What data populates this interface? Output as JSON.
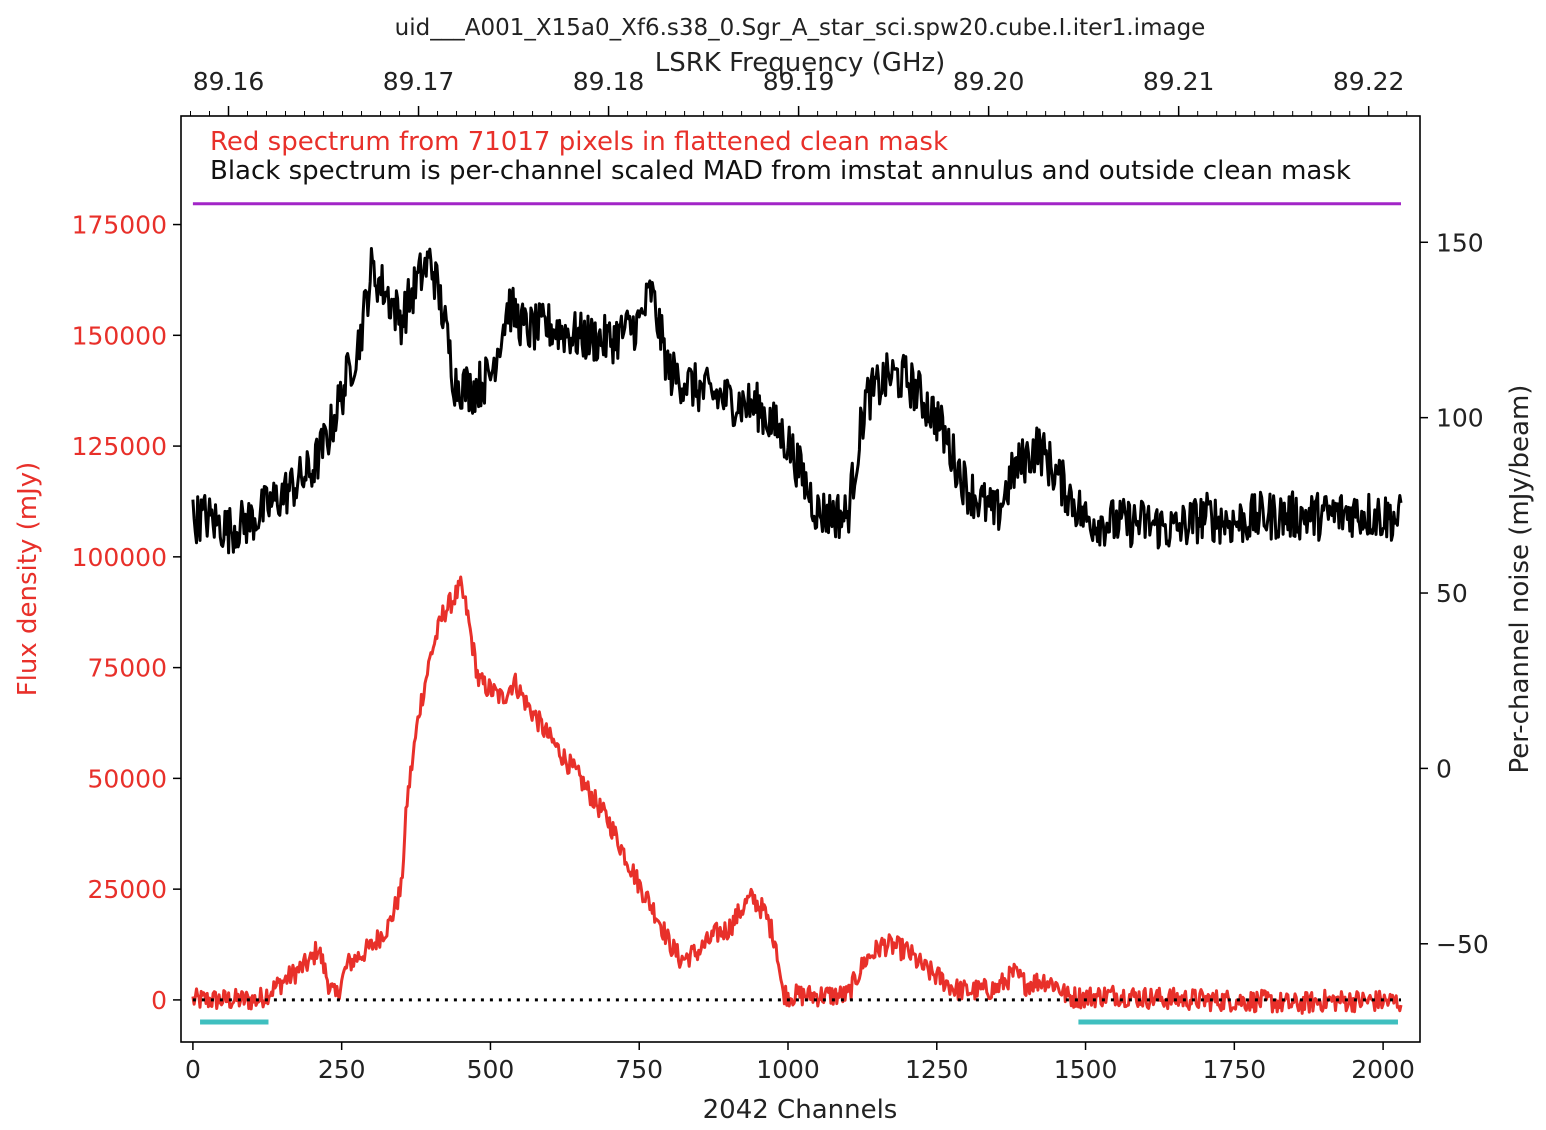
{
  "chart_data": {
    "type": "line",
    "title": "uid___A001_X15a0_Xf6.s38_0.Sgr_A_star_sci.spw20.cube.I.iter1.image",
    "xlabel": "2042 Channels",
    "top_xlabel": "LSRK Frequency (GHz)",
    "ylabel_left": "Flux density (mJy)",
    "ylabel_right": "Per-channel noise (mJy/beam)",
    "annotation_red": "Red spectrum from 71017 pixels in flattened clean mask",
    "annotation_black": "Black spectrum is per-channel scaled MAD from imstat annulus and outside clean mask",
    "xlim": [
      -20,
      2062
    ],
    "ylim_left": [
      -9500,
      199500
    ],
    "ylim_right": [
      -78,
      186
    ],
    "top_xlim": [
      89.1575,
      89.2227
    ],
    "x_ticks": [
      {
        "v": 0,
        "label": "0"
      },
      {
        "v": 250,
        "label": "250"
      },
      {
        "v": 500,
        "label": "500"
      },
      {
        "v": 750,
        "label": "750"
      },
      {
        "v": 1000,
        "label": "1000"
      },
      {
        "v": 1250,
        "label": "1250"
      },
      {
        "v": 1500,
        "label": "1500"
      },
      {
        "v": 1750,
        "label": "1750"
      },
      {
        "v": 2000,
        "label": "2000"
      }
    ],
    "y_left_ticks": [
      {
        "v": 0,
        "label": "0"
      },
      {
        "v": 25000,
        "label": "25000"
      },
      {
        "v": 50000,
        "label": "50000"
      },
      {
        "v": 75000,
        "label": "75000"
      },
      {
        "v": 100000,
        "label": "100000"
      },
      {
        "v": 125000,
        "label": "125000"
      },
      {
        "v": 150000,
        "label": "150000"
      },
      {
        "v": 175000,
        "label": "175000"
      }
    ],
    "y_right_ticks": [
      {
        "v": -50,
        "label": "−50"
      },
      {
        "v": 0,
        "label": "0"
      },
      {
        "v": 50,
        "label": "50"
      },
      {
        "v": 100,
        "label": "100"
      },
      {
        "v": 150,
        "label": "150"
      }
    ],
    "top_ticks": [
      {
        "v": 89.16,
        "label": "89.16"
      },
      {
        "v": 89.17,
        "label": "89.17"
      },
      {
        "v": 89.18,
        "label": "89.18"
      },
      {
        "v": 89.19,
        "label": "89.19"
      },
      {
        "v": 89.2,
        "label": "89.20"
      },
      {
        "v": 89.21,
        "label": "89.21"
      },
      {
        "v": 89.22,
        "label": "89.22"
      }
    ],
    "series": [
      {
        "name": "Red spectrum (flux density)",
        "axis": "left",
        "color": "#e8302a",
        "x": [
          0,
          50,
          110,
          150,
          200,
          210,
          230,
          240,
          260,
          300,
          330,
          350,
          360,
          380,
          400,
          420,
          440,
          450,
          460,
          480,
          500,
          520,
          540,
          560,
          600,
          650,
          700,
          750,
          780,
          800,
          820,
          850,
          880,
          900,
          930,
          940,
          960,
          980,
          990,
          1000,
          1030,
          1100,
          1130,
          1160,
          1180,
          1200,
          1230,
          1260,
          1280,
          1300,
          1350,
          1380,
          1400,
          1430,
          1450,
          1470,
          1500,
          1550,
          1600,
          1700,
          1800,
          1850,
          1900,
          1950,
          2000,
          2030
        ],
        "values": [
          0,
          0,
          0,
          4000,
          9000,
          12000,
          3000,
          500,
          8000,
          12000,
          17000,
          25000,
          45000,
          65000,
          78000,
          87000,
          91000,
          93000,
          88000,
          72000,
          70000,
          68000,
          72000,
          67000,
          59000,
          50000,
          40000,
          26000,
          19000,
          13000,
          9000,
          11000,
          15000,
          16000,
          22000,
          23000,
          20000,
          13000,
          2000,
          1000,
          1000,
          1000,
          9000,
          12500,
          12000,
          11000,
          7000,
          4500,
          2500,
          2000,
          2500,
          6000,
          3500,
          4500,
          3500,
          700,
          600,
          1200,
          500,
          0,
          -300,
          -1000,
          -200,
          -200,
          -300,
          -500
        ]
      },
      {
        "name": "Black spectrum (per-channel noise)",
        "axis": "right",
        "color": "#000000",
        "x": [
          0,
          20,
          60,
          100,
          150,
          200,
          230,
          260,
          280,
          300,
          320,
          350,
          380,
          400,
          420,
          440,
          470,
          500,
          530,
          560,
          600,
          650,
          700,
          750,
          770,
          800,
          850,
          900,
          950,
          1000,
          1050,
          1100,
          1130,
          1170,
          1200,
          1250,
          1300,
          1350,
          1380,
          1420,
          1450,
          1500,
          1550,
          1600,
          1650,
          1700,
          1750,
          1800,
          1850,
          1900,
          1950,
          2000,
          2030
        ],
        "values": [
          71,
          72,
          68,
          71,
          78,
          85,
          96,
          112,
          122,
          142,
          137,
          128,
          140,
          145,
          130,
          110,
          108,
          112,
          132,
          125,
          126,
          123,
          122,
          127,
          136,
          113,
          108,
          105,
          103,
          93,
          73,
          72,
          105,
          112,
          111,
          100,
          80,
          72,
          85,
          92,
          84,
          71,
          70,
          70,
          68,
          72,
          70,
          72,
          72,
          72,
          73,
          72,
          71
        ]
      },
      {
        "name": "Horizontal reference (purple)",
        "axis": "right",
        "color": "#a225c7",
        "x": [
          0,
          2030
        ],
        "values": [
          161,
          161
        ]
      },
      {
        "name": "Zero level (dotted)",
        "axis": "left",
        "color": "#000000",
        "x": [
          0,
          2030
        ],
        "values": [
          0,
          0
        ]
      }
    ],
    "continuum_ranges": {
      "color": "#3fbfbf",
      "level": -5000,
      "ranges": [
        [
          12,
          127
        ],
        [
          1488,
          2025
        ]
      ]
    }
  }
}
